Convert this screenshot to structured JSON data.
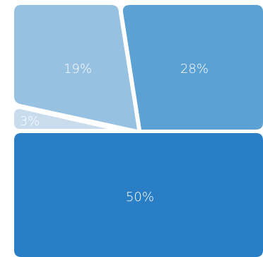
{
  "chart_data": {
    "type": "voronoi-treemap",
    "cells": [
      {
        "label": "50%",
        "value": 50,
        "color": "#2a7ec5"
      },
      {
        "label": "28%",
        "value": 28,
        "color": "#5ca1d3"
      },
      {
        "label": "19%",
        "value": 19,
        "color": "#97c1e1"
      },
      {
        "label": "3%",
        "value": 3,
        "color": "#c9dcee"
      }
    ]
  }
}
